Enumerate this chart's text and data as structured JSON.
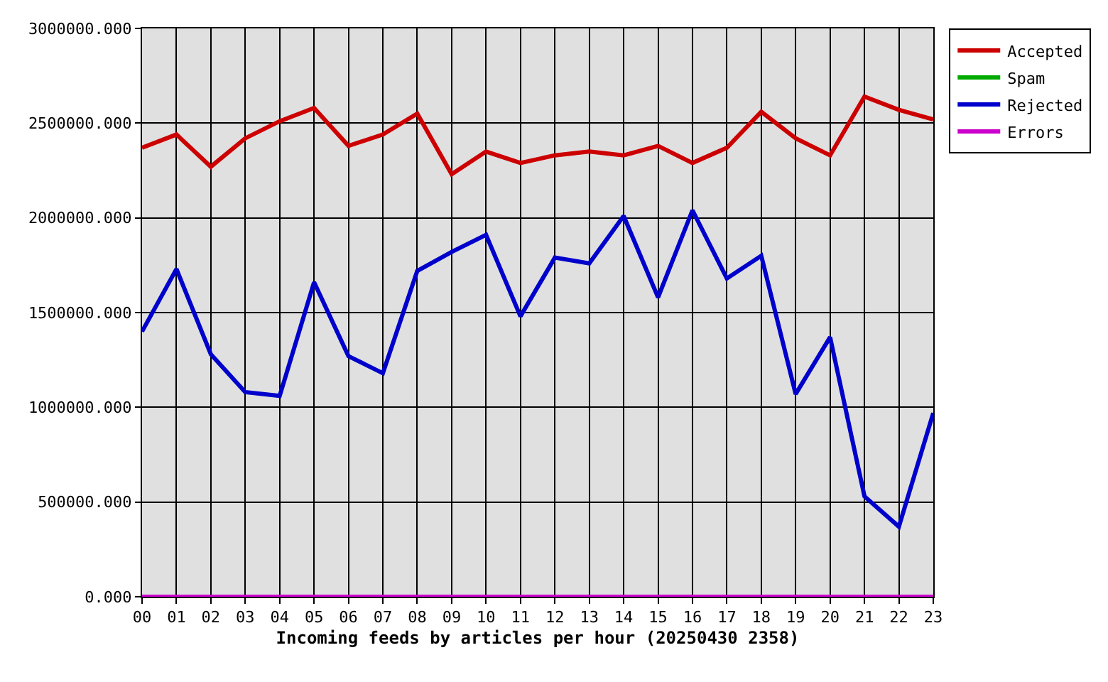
{
  "chart_data": {
    "type": "line",
    "xlabel": "Incoming feeds by articles per hour (20250430 2358)",
    "categories": [
      "00",
      "01",
      "02",
      "03",
      "04",
      "05",
      "06",
      "07",
      "08",
      "09",
      "10",
      "11",
      "12",
      "13",
      "14",
      "15",
      "16",
      "17",
      "18",
      "19",
      "20",
      "21",
      "22",
      "23"
    ],
    "series": [
      {
        "name": "Accepted",
        "color": "#cc0000",
        "values": [
          2370000,
          2440000,
          2270000,
          2420000,
          2510000,
          2580000,
          2380000,
          2440000,
          2550000,
          2230000,
          2350000,
          2290000,
          2330000,
          2350000,
          2330000,
          2380000,
          2290000,
          2370000,
          2560000,
          2420000,
          2330000,
          2640000,
          2570000,
          2520000
        ]
      },
      {
        "name": "Spam",
        "color": "#00aa00",
        "values": [
          null,
          null,
          null,
          null,
          null,
          null,
          null,
          null,
          null,
          null,
          null,
          null,
          null,
          null,
          null,
          null,
          null,
          null,
          null,
          null,
          null,
          null,
          null,
          null
        ]
      },
      {
        "name": "Rejected",
        "color": "#0000cc",
        "values": [
          1400000,
          1730000,
          1280000,
          1080000,
          1060000,
          1660000,
          1270000,
          1180000,
          1720000,
          1820000,
          1910000,
          1480000,
          1790000,
          1760000,
          2010000,
          1580000,
          2040000,
          1680000,
          1800000,
          1070000,
          1370000,
          530000,
          370000,
          970000
        ]
      },
      {
        "name": "Errors",
        "color": "#cc00cc",
        "values": [
          0,
          0,
          0,
          0,
          0,
          0,
          0,
          0,
          0,
          0,
          0,
          0,
          0,
          0,
          0,
          0,
          0,
          0,
          0,
          0,
          0,
          0,
          0,
          0
        ]
      }
    ],
    "ylim": [
      0,
      3000000
    ],
    "yticks": [
      {
        "value": 0,
        "label": "0.000"
      },
      {
        "value": 500000,
        "label": "500000.000"
      },
      {
        "value": 1000000,
        "label": "1000000.000"
      },
      {
        "value": 1500000,
        "label": "1500000.000"
      },
      {
        "value": 2000000,
        "label": "2000000.000"
      },
      {
        "value": 2500000,
        "label": "2500000.000"
      },
      {
        "value": 3000000,
        "label": "3000000.000"
      }
    ],
    "grid": true,
    "legend": "top right",
    "line_style": "solid"
  }
}
